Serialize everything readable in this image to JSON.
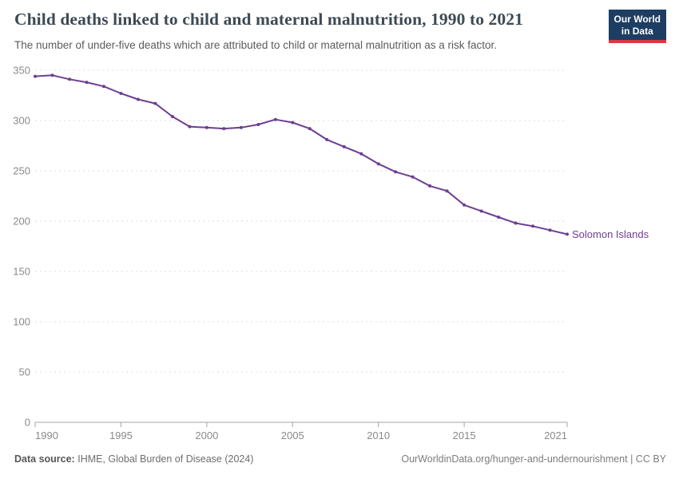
{
  "header": {
    "title": "Child deaths linked to child and maternal malnutrition, 1990 to 2021",
    "subtitle": "The number of under-five deaths which are attributed to child or maternal malnutrition as a risk factor.",
    "logo": {
      "line1": "Our World",
      "line2": "in Data"
    }
  },
  "chart_data": {
    "type": "line",
    "title": "Child deaths linked to child and maternal malnutrition, 1990 to 2021",
    "xlabel": "",
    "ylabel": "",
    "xlim": [
      1990,
      2021
    ],
    "ylim": [
      0,
      350
    ],
    "xticks": [
      1990,
      1995,
      2000,
      2005,
      2010,
      2015,
      2021
    ],
    "yticks": [
      0,
      50,
      100,
      150,
      200,
      250,
      300,
      350
    ],
    "grid": "horizontal-dashed",
    "legend_position": "end-of-line-label",
    "series": [
      {
        "name": "Solomon Islands",
        "color": "#6d3e91",
        "x": [
          1990,
          1991,
          1992,
          1993,
          1994,
          1995,
          1996,
          1997,
          1998,
          1999,
          2000,
          2001,
          2002,
          2003,
          2004,
          2005,
          2006,
          2007,
          2008,
          2009,
          2010,
          2011,
          2012,
          2013,
          2014,
          2015,
          2016,
          2017,
          2018,
          2019,
          2020,
          2021
        ],
        "values": [
          344,
          345,
          341,
          338,
          334,
          327,
          321,
          317,
          304,
          294,
          293,
          292,
          293,
          296,
          301,
          298,
          292,
          281,
          274,
          267,
          257,
          249,
          244,
          235,
          230,
          216,
          210,
          204,
          198,
          195,
          191,
          187
        ]
      }
    ]
  },
  "footer": {
    "source_label": "Data source:",
    "source_text": "IHME, Global Burden of Disease (2024)",
    "link_text": "OurWorldinData.org/hunger-and-undernourishment | CC BY"
  },
  "colors": {
    "line": "#6d3e91",
    "logo_bg": "#1d3d63",
    "logo_stripe": "#d73c42",
    "grid": "#dcdcdc",
    "axis": "#a3a3a3",
    "tick_label": "#8a8a8a"
  }
}
